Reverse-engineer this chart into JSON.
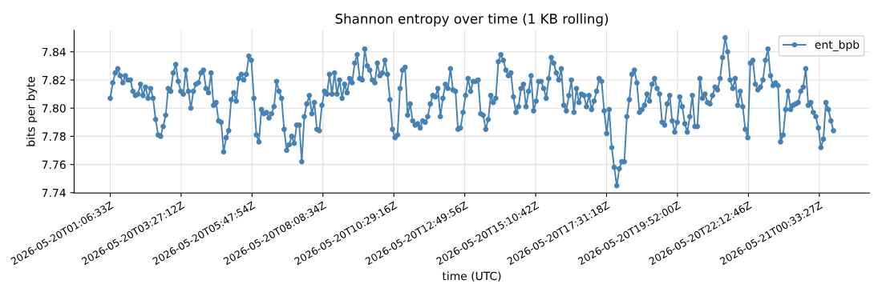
{
  "chart_data": {
    "type": "line",
    "title": "Shannon entropy over time (1 KB rolling)",
    "xlabel": "time (UTC)",
    "ylabel": "bits per byte",
    "x": [
      "2026-05-20T01:06:33",
      "2026-05-20T01:11:33",
      "2026-05-20T01:16:33",
      "2026-05-20T01:21:33",
      "2026-05-20T01:26:33",
      "2026-05-20T01:31:33",
      "2026-05-20T01:36:33",
      "2026-05-20T01:41:33",
      "2026-05-20T01:46:33",
      "2026-05-20T01:51:33",
      "2026-05-20T01:56:33",
      "2026-05-20T02:01:33",
      "2026-05-20T02:06:33",
      "2026-05-20T02:11:33",
      "2026-05-20T02:16:33",
      "2026-05-20T02:21:33",
      "2026-05-20T02:26:33",
      "2026-05-20T02:31:33",
      "2026-05-20T02:36:33",
      "2026-05-20T02:41:33",
      "2026-05-20T02:46:33",
      "2026-05-20T02:51:33",
      "2026-05-20T02:56:33",
      "2026-05-20T03:01:33",
      "2026-05-20T03:06:33",
      "2026-05-20T03:11:33",
      "2026-05-20T03:16:33",
      "2026-05-20T03:21:33",
      "2026-05-20T03:26:33",
      "2026-05-20T03:31:33",
      "2026-05-20T03:36:33",
      "2026-05-20T03:41:33",
      "2026-05-20T03:46:33",
      "2026-05-20T03:51:33",
      "2026-05-20T03:56:33",
      "2026-05-20T04:01:33",
      "2026-05-20T04:06:33",
      "2026-05-20T04:11:33",
      "2026-05-20T04:16:33",
      "2026-05-20T04:21:33",
      "2026-05-20T04:26:33",
      "2026-05-20T04:31:33",
      "2026-05-20T04:36:33",
      "2026-05-20T04:41:33",
      "2026-05-20T04:46:33",
      "2026-05-20T04:51:33",
      "2026-05-20T04:56:33",
      "2026-05-20T05:01:33",
      "2026-05-20T05:06:33",
      "2026-05-20T05:11:33",
      "2026-05-20T05:16:33",
      "2026-05-20T05:21:33",
      "2026-05-20T05:26:33",
      "2026-05-20T05:31:33",
      "2026-05-20T05:36:33",
      "2026-05-20T05:41:33",
      "2026-05-20T05:46:33",
      "2026-05-20T05:51:33",
      "2026-05-20T05:56:33",
      "2026-05-20T06:01:33",
      "2026-05-20T06:06:33",
      "2026-05-20T06:11:33",
      "2026-05-20T06:16:33",
      "2026-05-20T06:21:33",
      "2026-05-20T06:26:33",
      "2026-05-20T06:31:33",
      "2026-05-20T06:36:33",
      "2026-05-20T06:41:33",
      "2026-05-20T06:46:33",
      "2026-05-20T06:51:33",
      "2026-05-20T06:56:33",
      "2026-05-20T07:01:33",
      "2026-05-20T07:06:33",
      "2026-05-20T07:11:33",
      "2026-05-20T07:16:33",
      "2026-05-20T07:21:33",
      "2026-05-20T07:26:33",
      "2026-05-20T07:31:33",
      "2026-05-20T07:36:33",
      "2026-05-20T07:41:33",
      "2026-05-20T07:46:33",
      "2026-05-20T07:51:33",
      "2026-05-20T07:56:33",
      "2026-05-20T08:01:33",
      "2026-05-20T08:06:33",
      "2026-05-20T08:11:33",
      "2026-05-20T08:16:33",
      "2026-05-20T08:21:33",
      "2026-05-20T08:26:33",
      "2026-05-20T08:31:33",
      "2026-05-20T08:36:33",
      "2026-05-20T08:41:33",
      "2026-05-20T08:46:33",
      "2026-05-20T08:51:33",
      "2026-05-20T08:56:33",
      "2026-05-20T09:01:33",
      "2026-05-20T09:06:33",
      "2026-05-20T09:11:33",
      "2026-05-20T09:16:33",
      "2026-05-20T09:21:33",
      "2026-05-20T09:26:33",
      "2026-05-20T09:31:33",
      "2026-05-20T09:36:33",
      "2026-05-20T09:41:33",
      "2026-05-20T09:46:33",
      "2026-05-20T09:51:33",
      "2026-05-20T09:56:33",
      "2026-05-20T10:01:33",
      "2026-05-20T10:06:33",
      "2026-05-20T10:11:33",
      "2026-05-20T10:16:33",
      "2026-05-20T10:21:33",
      "2026-05-20T10:26:33",
      "2026-05-20T10:31:33",
      "2026-05-20T10:36:33",
      "2026-05-20T10:41:33",
      "2026-05-20T10:46:33",
      "2026-05-20T10:51:33",
      "2026-05-20T10:56:33",
      "2026-05-20T11:01:33",
      "2026-05-20T11:06:33",
      "2026-05-20T11:11:33",
      "2026-05-20T11:16:33",
      "2026-05-20T11:21:33",
      "2026-05-20T11:26:33",
      "2026-05-20T11:31:33",
      "2026-05-20T11:36:33",
      "2026-05-20T11:41:33",
      "2026-05-20T11:46:33",
      "2026-05-20T11:51:33",
      "2026-05-20T11:56:33",
      "2026-05-20T12:01:33",
      "2026-05-20T12:06:33",
      "2026-05-20T12:11:33",
      "2026-05-20T12:16:33",
      "2026-05-20T12:21:33",
      "2026-05-20T12:26:33",
      "2026-05-20T12:31:33",
      "2026-05-20T12:36:33",
      "2026-05-20T12:41:33",
      "2026-05-20T12:46:33",
      "2026-05-20T12:51:33",
      "2026-05-20T12:56:33",
      "2026-05-20T13:01:33",
      "2026-05-20T13:06:33",
      "2026-05-20T13:11:33",
      "2026-05-20T13:16:33",
      "2026-05-20T13:21:33",
      "2026-05-20T13:26:33",
      "2026-05-20T13:31:33",
      "2026-05-20T13:36:33",
      "2026-05-20T13:41:33",
      "2026-05-20T13:46:33",
      "2026-05-20T13:51:33",
      "2026-05-20T13:56:33",
      "2026-05-20T14:01:33",
      "2026-05-20T14:06:33",
      "2026-05-20T14:11:33",
      "2026-05-20T14:16:33",
      "2026-05-20T14:21:33",
      "2026-05-20T14:26:33",
      "2026-05-20T14:31:33",
      "2026-05-20T14:36:33",
      "2026-05-20T14:41:33",
      "2026-05-20T14:46:33",
      "2026-05-20T14:51:33",
      "2026-05-20T14:56:33",
      "2026-05-20T15:01:33",
      "2026-05-20T15:06:33",
      "2026-05-20T15:11:33",
      "2026-05-20T15:16:33",
      "2026-05-20T15:21:33",
      "2026-05-20T15:26:33",
      "2026-05-20T15:31:33",
      "2026-05-20T15:36:33",
      "2026-05-20T15:41:33",
      "2026-05-20T15:46:33",
      "2026-05-20T15:51:33",
      "2026-05-20T15:56:33",
      "2026-05-20T16:01:33",
      "2026-05-20T16:06:33",
      "2026-05-20T16:11:33",
      "2026-05-20T16:16:33",
      "2026-05-20T16:21:33",
      "2026-05-20T16:26:33",
      "2026-05-20T16:31:33",
      "2026-05-20T16:36:33",
      "2026-05-20T16:41:33",
      "2026-05-20T16:46:33",
      "2026-05-20T16:51:33",
      "2026-05-20T16:56:33",
      "2026-05-20T17:01:33",
      "2026-05-20T17:06:33",
      "2026-05-20T17:11:33",
      "2026-05-20T17:16:33",
      "2026-05-20T17:21:33",
      "2026-05-20T17:26:33",
      "2026-05-20T17:31:33",
      "2026-05-20T17:36:33",
      "2026-05-20T17:41:33",
      "2026-05-20T17:46:33",
      "2026-05-20T17:51:33",
      "2026-05-20T17:56:33",
      "2026-05-20T18:01:33",
      "2026-05-20T18:06:33",
      "2026-05-20T18:11:33",
      "2026-05-20T18:16:33",
      "2026-05-20T18:21:33",
      "2026-05-20T18:26:33",
      "2026-05-20T18:31:33",
      "2026-05-20T18:36:33",
      "2026-05-20T18:41:33",
      "2026-05-20T18:46:33",
      "2026-05-20T18:51:33",
      "2026-05-20T18:56:33",
      "2026-05-20T19:01:33",
      "2026-05-20T19:06:33",
      "2026-05-20T19:11:33",
      "2026-05-20T19:16:33",
      "2026-05-20T19:21:33",
      "2026-05-20T19:26:33",
      "2026-05-20T19:31:33",
      "2026-05-20T19:36:33",
      "2026-05-20T19:41:33",
      "2026-05-20T19:46:33",
      "2026-05-20T19:51:33",
      "2026-05-20T19:56:33",
      "2026-05-20T20:01:33",
      "2026-05-20T20:06:33",
      "2026-05-20T20:11:33",
      "2026-05-20T20:16:33",
      "2026-05-20T20:21:33",
      "2026-05-20T20:26:33",
      "2026-05-20T20:31:33",
      "2026-05-20T20:36:33",
      "2026-05-20T20:41:33",
      "2026-05-20T20:46:33",
      "2026-05-20T20:51:33",
      "2026-05-20T20:56:33",
      "2026-05-20T21:01:33",
      "2026-05-20T21:06:33",
      "2026-05-20T21:11:33",
      "2026-05-20T21:16:33",
      "2026-05-20T21:21:33",
      "2026-05-20T21:26:33",
      "2026-05-20T21:31:33",
      "2026-05-20T21:36:33",
      "2026-05-20T21:41:33",
      "2026-05-20T21:46:33",
      "2026-05-20T21:51:33",
      "2026-05-20T21:56:33",
      "2026-05-20T22:01:33",
      "2026-05-20T22:06:33",
      "2026-05-20T22:11:33",
      "2026-05-20T22:16:33",
      "2026-05-20T22:21:33",
      "2026-05-20T22:26:33",
      "2026-05-20T22:31:33",
      "2026-05-20T22:36:33",
      "2026-05-20T22:41:33",
      "2026-05-20T22:46:33",
      "2026-05-20T22:51:33",
      "2026-05-20T22:56:33",
      "2026-05-20T23:01:33",
      "2026-05-20T23:06:33",
      "2026-05-20T23:11:33",
      "2026-05-20T23:16:33",
      "2026-05-20T23:21:33",
      "2026-05-20T23:26:33",
      "2026-05-20T23:31:33",
      "2026-05-20T23:36:33",
      "2026-05-20T23:41:33",
      "2026-05-20T23:46:33",
      "2026-05-20T23:51:33",
      "2026-05-20T23:56:33",
      "2026-05-21T00:01:33",
      "2026-05-21T00:06:33",
      "2026-05-21T00:11:33",
      "2026-05-21T00:16:33",
      "2026-05-21T00:21:33",
      "2026-05-21T00:26:33",
      "2026-05-21T00:31:33",
      "2026-05-21T00:36:33",
      "2026-05-21T00:41:33",
      "2026-05-21T00:46:33",
      "2026-05-21T00:51:33",
      "2026-05-21T00:56:33",
      "2026-05-21T01:01:33"
    ],
    "series": [
      {
        "name": "ent_bpb",
        "color": "#4682b4",
        "values": [
          7.807,
          7.818,
          7.825,
          7.828,
          7.823,
          7.818,
          7.823,
          7.82,
          7.82,
          7.812,
          7.809,
          7.81,
          7.817,
          7.809,
          7.815,
          7.807,
          7.814,
          7.807,
          7.792,
          7.781,
          7.78,
          7.787,
          7.795,
          7.814,
          7.812,
          7.825,
          7.831,
          7.819,
          7.812,
          7.81,
          7.827,
          7.812,
          7.8,
          7.812,
          7.817,
          7.818,
          7.825,
          7.827,
          7.814,
          7.811,
          7.825,
          7.802,
          7.804,
          7.791,
          7.79,
          7.769,
          7.779,
          7.784,
          7.806,
          7.811,
          7.805,
          7.821,
          7.824,
          7.82,
          7.824,
          7.837,
          7.834,
          7.807,
          7.781,
          7.776,
          7.799,
          7.796,
          7.797,
          7.793,
          7.796,
          7.801,
          7.819,
          7.812,
          7.807,
          7.785,
          7.77,
          7.774,
          7.78,
          7.775,
          7.788,
          7.788,
          7.762,
          7.794,
          7.803,
          7.809,
          7.796,
          7.804,
          7.785,
          7.784,
          7.802,
          7.812,
          7.81,
          7.824,
          7.81,
          7.825,
          7.81,
          7.82,
          7.807,
          7.817,
          7.811,
          7.821,
          7.818,
          7.832,
          7.838,
          7.821,
          7.82,
          7.842,
          7.83,
          7.827,
          7.82,
          7.818,
          7.832,
          7.823,
          7.825,
          7.834,
          7.824,
          7.806,
          7.785,
          7.779,
          7.781,
          7.814,
          7.827,
          7.829,
          7.795,
          7.803,
          7.791,
          7.788,
          7.789,
          7.786,
          7.791,
          7.79,
          7.794,
          7.803,
          7.809,
          7.808,
          7.814,
          7.794,
          7.807,
          7.817,
          7.814,
          7.828,
          7.813,
          7.812,
          7.785,
          7.786,
          7.797,
          7.809,
          7.821,
          7.812,
          7.819,
          7.819,
          7.82,
          7.796,
          7.795,
          7.785,
          7.792,
          7.809,
          7.804,
          7.807,
          7.833,
          7.838,
          7.834,
          7.827,
          7.823,
          7.825,
          7.808,
          7.797,
          7.801,
          7.814,
          7.817,
          7.801,
          7.812,
          7.823,
          7.798,
          7.805,
          7.819,
          7.819,
          7.814,
          7.807,
          7.821,
          7.836,
          7.832,
          7.825,
          7.82,
          7.828,
          7.802,
          7.798,
          7.809,
          7.82,
          7.797,
          7.814,
          7.804,
          7.81,
          7.809,
          7.801,
          7.809,
          7.799,
          7.805,
          7.812,
          7.821,
          7.819,
          7.798,
          7.782,
          7.799,
          7.772,
          7.758,
          7.745,
          7.757,
          7.762,
          7.762,
          7.794,
          7.806,
          7.824,
          7.827,
          7.818,
          7.797,
          7.799,
          7.802,
          7.81,
          7.805,
          7.817,
          7.821,
          7.814,
          7.81,
          7.79,
          7.788,
          7.803,
          7.809,
          7.791,
          7.783,
          7.79,
          7.808,
          7.801,
          7.789,
          7.783,
          7.794,
          7.809,
          7.787,
          7.787,
          7.821,
          7.807,
          7.81,
          7.804,
          7.803,
          7.809,
          7.815,
          7.813,
          7.821,
          7.836,
          7.85,
          7.84,
          7.82,
          7.814,
          7.821,
          7.802,
          7.812,
          7.801,
          7.785,
          7.779,
          7.832,
          7.834,
          7.817,
          7.813,
          7.815,
          7.82,
          7.834,
          7.842,
          7.823,
          7.816,
          7.818,
          7.816,
          7.776,
          7.781,
          7.799,
          7.812,
          7.799,
          7.802,
          7.803,
          7.804,
          7.812,
          7.815,
          7.828,
          7.802,
          7.804,
          7.797,
          7.794,
          7.786,
          7.772,
          7.778,
          7.804,
          7.799,
          7.791,
          7.784
        ]
      }
    ],
    "xlim": [
      "2026-05-19T23:54:48",
      "2026-05-21T02:13:18"
    ],
    "xticks": [
      {
        "value": "2026-05-20T01:06:33",
        "label": "2026-05-20T01:06:33Z"
      },
      {
        "value": "2026-05-20T03:27:12",
        "label": "2026-05-20T03:27:12Z"
      },
      {
        "value": "2026-05-20T05:47:54",
        "label": "2026-05-20T05:47:54Z"
      },
      {
        "value": "2026-05-20T08:08:34",
        "label": "2026-05-20T08:08:34Z"
      },
      {
        "value": "2026-05-20T10:29:16",
        "label": "2026-05-20T10:29:16Z"
      },
      {
        "value": "2026-05-20T12:49:56",
        "label": "2026-05-20T12:49:56Z"
      },
      {
        "value": "2026-05-20T15:10:42",
        "label": "2026-05-20T15:10:42Z"
      },
      {
        "value": "2026-05-20T17:31:18",
        "label": "2026-05-20T17:31:18Z"
      },
      {
        "value": "2026-05-20T19:52:00",
        "label": "2026-05-20T19:52:00Z"
      },
      {
        "value": "2026-05-20T22:12:46",
        "label": "2026-05-20T22:12:46Z"
      },
      {
        "value": "2026-05-21T00:33:27",
        "label": "2026-05-21T00:33:27Z"
      }
    ],
    "ylim": [
      7.7398,
      7.8553
    ],
    "yticks": [
      {
        "value": 7.74,
        "label": "7.74"
      },
      {
        "value": 7.76,
        "label": "7.76"
      },
      {
        "value": 7.78,
        "label": "7.78"
      },
      {
        "value": 7.8,
        "label": "7.80"
      },
      {
        "value": 7.82,
        "label": "7.82"
      },
      {
        "value": 7.84,
        "label": "7.84"
      }
    ],
    "grid": true,
    "legend": "top right",
    "marker": "circle",
    "line_style": "solid"
  }
}
